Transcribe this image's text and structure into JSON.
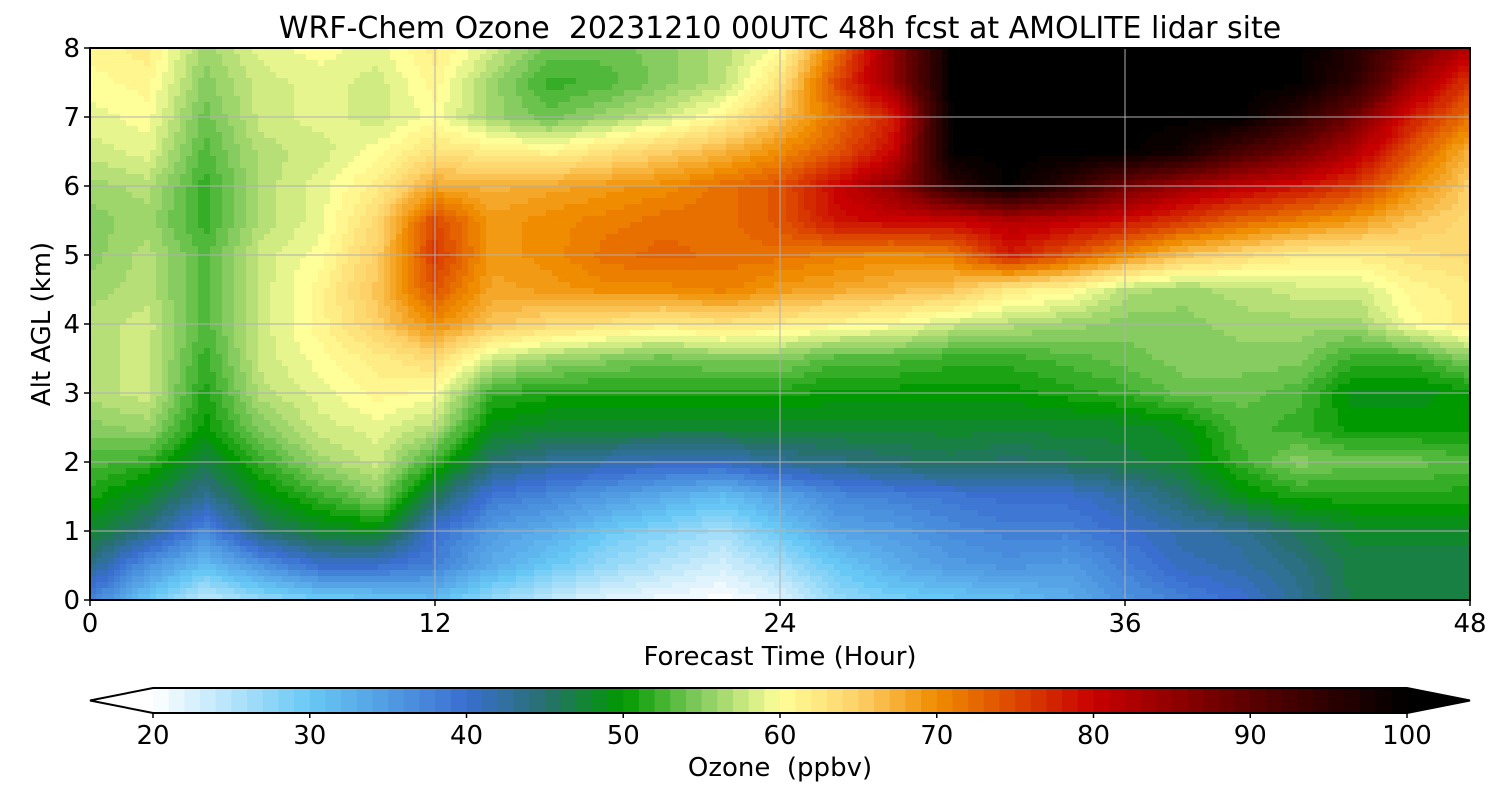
{
  "chart_data": {
    "type": "heatmap",
    "title": "WRF-Chem Ozone  20231210 00UTC 48h fcst at AMOLITE lidar site",
    "xlabel": "Forecast Time (Hour)",
    "ylabel": "Alt AGL (km)",
    "xlim": [
      0,
      48
    ],
    "ylim": [
      0,
      8
    ],
    "xticks": [
      0,
      12,
      24,
      36,
      48
    ],
    "yticks": [
      0,
      1,
      2,
      3,
      4,
      5,
      6,
      7,
      8
    ],
    "grid": true,
    "x_hours": [
      0,
      2,
      4,
      6,
      8,
      10,
      12,
      14,
      16,
      18,
      20,
      22,
      24,
      26,
      28,
      30,
      32,
      34,
      36,
      38,
      40,
      42,
      44,
      46,
      48
    ],
    "alt_km": [
      0,
      0.5,
      1,
      1.5,
      2,
      2.5,
      3,
      3.5,
      4,
      4.5,
      5,
      5.5,
      6,
      6.5,
      7,
      7.5,
      8
    ],
    "ozone_ppbv": [
      [
        38,
        30,
        24,
        27,
        29,
        30,
        31,
        27,
        24,
        22,
        21,
        20,
        22,
        27,
        29,
        30,
        31,
        33,
        36,
        38,
        40,
        43,
        47,
        47,
        47
      ],
      [
        44,
        36,
        31,
        36,
        40,
        40,
        38,
        33,
        30,
        27,
        25,
        23,
        26,
        30,
        33,
        35,
        36,
        35,
        38,
        41,
        42,
        44,
        47,
        47,
        47
      ],
      [
        48,
        44,
        37,
        45,
        48,
        49,
        40,
        35,
        33,
        30,
        28,
        26,
        30,
        34,
        35,
        37,
        38,
        38,
        40,
        42,
        43,
        46,
        48,
        48,
        48
      ],
      [
        51,
        48,
        43,
        49,
        52,
        55,
        46,
        39,
        37,
        35,
        33,
        31,
        34,
        37,
        38,
        39,
        40,
        40,
        42,
        45,
        49,
        51,
        51,
        51,
        51
      ],
      [
        53,
        52,
        47,
        52,
        56,
        58,
        52,
        45,
        43,
        42,
        41,
        41,
        43,
        44,
        45,
        46,
        45,
        46,
        47,
        48,
        52,
        55,
        54,
        54,
        53
      ],
      [
        55,
        56,
        50,
        55,
        58,
        59,
        57,
        49,
        48,
        48,
        48,
        48,
        48,
        48,
        48,
        48,
        48,
        48,
        48,
        49,
        53,
        52,
        50,
        50,
        50
      ],
      [
        57,
        58,
        51,
        57,
        59,
        61,
        60,
        52,
        51,
        51,
        51,
        51,
        51,
        50,
        50,
        50,
        50,
        51,
        52,
        54,
        54,
        53,
        49,
        49,
        50
      ],
      [
        57,
        58,
        52,
        58,
        60,
        62,
        64,
        58,
        56,
        55,
        54,
        55,
        55,
        53,
        53,
        52,
        52,
        53,
        54,
        55,
        55,
        55,
        52,
        52,
        55
      ],
      [
        57,
        58,
        53,
        58,
        61,
        65,
        70,
        66,
        64,
        63,
        62,
        63,
        62,
        61,
        60,
        58,
        57,
        56,
        55,
        55,
        56,
        56,
        56,
        60,
        62
      ],
      [
        56,
        57,
        53,
        58,
        61,
        66,
        74,
        68,
        69,
        70,
        70,
        71,
        69,
        68,
        67,
        66,
        62,
        61,
        57,
        56,
        57,
        58,
        58,
        61,
        62
      ],
      [
        55,
        57,
        53,
        58,
        60,
        65,
        76,
        69,
        70,
        72,
        73,
        72,
        72,
        71,
        70,
        71,
        78,
        74,
        70,
        66,
        64,
        62,
        62,
        63,
        64
      ],
      [
        55,
        56,
        52,
        57,
        59,
        64,
        75,
        69,
        70,
        71,
        72,
        72,
        74,
        79,
        80,
        80,
        82,
        81,
        79,
        76,
        73,
        71,
        69,
        66,
        64
      ],
      [
        56,
        57,
        52,
        57,
        59,
        62,
        68,
        67,
        68,
        69,
        70,
        72,
        74,
        80,
        85,
        95,
        100,
        95,
        88,
        84,
        81,
        79,
        76,
        70,
        65
      ],
      [
        58,
        59,
        53,
        57,
        58,
        60,
        63,
        62,
        61,
        63,
        65,
        67,
        70,
        74,
        80,
        100,
        100,
        100,
        100,
        98,
        92,
        88,
        82,
        74,
        67
      ],
      [
        59,
        60,
        54,
        58,
        59,
        58,
        60,
        56,
        54,
        56,
        58,
        61,
        66,
        72,
        78,
        100,
        100,
        100,
        100,
        100,
        100,
        95,
        88,
        78,
        72
      ],
      [
        60,
        61,
        55,
        58,
        59,
        58,
        61,
        56,
        52,
        53,
        55,
        57,
        63,
        75,
        85,
        100,
        100,
        100,
        100,
        100,
        100,
        100,
        95,
        84,
        76
      ],
      [
        61,
        62,
        56,
        59,
        60,
        59,
        62,
        58,
        54,
        54,
        55,
        57,
        60,
        72,
        85,
        100,
        100,
        100,
        100,
        100,
        100,
        100,
        96,
        88,
        82
      ]
    ],
    "colorbar": {
      "label": "Ozone  (ppbv)",
      "min": 20,
      "max": 100,
      "ticks": [
        20,
        30,
        40,
        50,
        60,
        70,
        80,
        90,
        100
      ],
      "extend": "both",
      "color_stops": [
        {
          "value": 20,
          "color": "#ffffff"
        },
        {
          "value": 30,
          "color": "#68c8f5"
        },
        {
          "value": 40,
          "color": "#3a6fd0"
        },
        {
          "value": 45,
          "color": "#27706e"
        },
        {
          "value": 50,
          "color": "#009900"
        },
        {
          "value": 55,
          "color": "#86cc60"
        },
        {
          "value": 60,
          "color": "#ffff99"
        },
        {
          "value": 65,
          "color": "#fdd068"
        },
        {
          "value": 70,
          "color": "#f08c00"
        },
        {
          "value": 80,
          "color": "#c80000"
        },
        {
          "value": 90,
          "color": "#5a0000"
        },
        {
          "value": 100,
          "color": "#000000"
        }
      ]
    }
  }
}
